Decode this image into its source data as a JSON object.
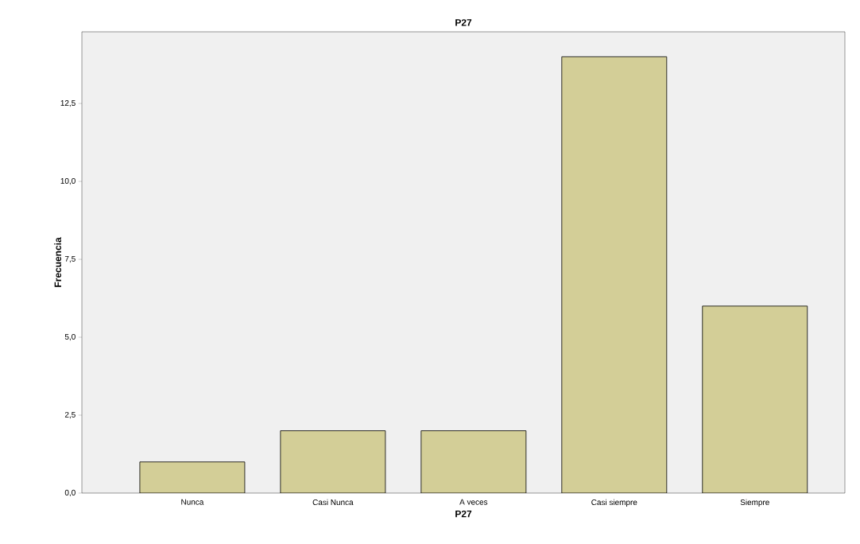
{
  "chart_data": {
    "type": "bar",
    "title": "P27",
    "xlabel": "P27",
    "ylabel": "Frecuencia",
    "categories": [
      "Nunca",
      "Casi Nunca",
      "A veces",
      "Casi siempre",
      "Siempre"
    ],
    "values": [
      1,
      2,
      2,
      14,
      6
    ],
    "color": "#d3ce97",
    "ylim": [
      0,
      14.8
    ],
    "yticks": [
      {
        "value": 0,
        "label": "0,0"
      },
      {
        "value": 2.5,
        "label": "2,5"
      },
      {
        "value": 5,
        "label": "5,0"
      },
      {
        "value": 7.5,
        "label": "7,5"
      },
      {
        "value": 10,
        "label": "10,0"
      },
      {
        "value": 12.5,
        "label": "12,5"
      }
    ],
    "grid": false
  }
}
